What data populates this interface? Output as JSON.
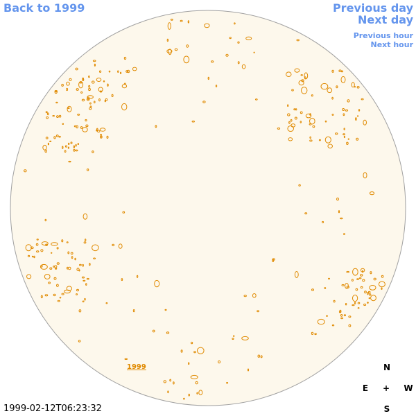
{
  "nav": {
    "back": "Back to 1999",
    "previous_day": "Previous day",
    "next_day": "Next day",
    "previous_hour": "Previous hour",
    "next_hour": "Next hour"
  },
  "disk_label": "1999",
  "compass": {
    "north": "N",
    "east": "E",
    "center": "+",
    "west": "W",
    "south": "S"
  },
  "timestamp": "1999-02-12T06:23:32"
}
